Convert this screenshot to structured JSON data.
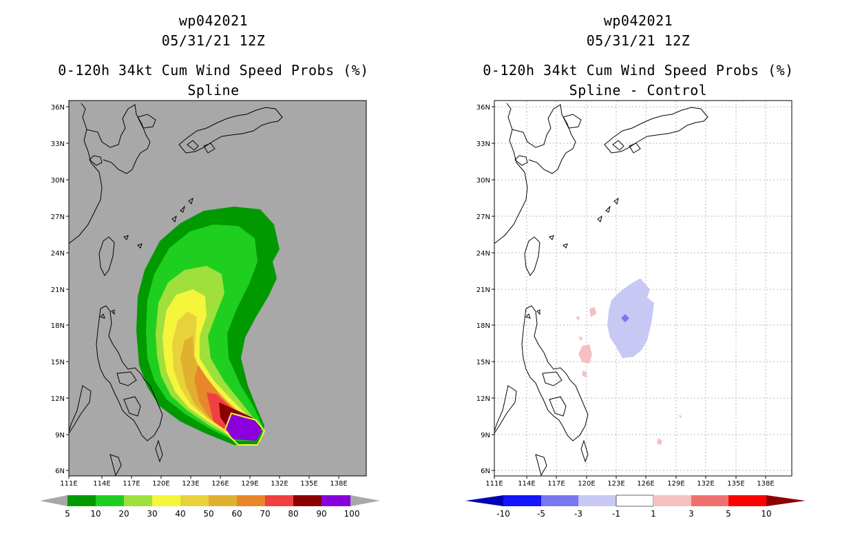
{
  "panels": [
    {
      "title_lines": [
        "wp042021",
        "05/31/21 12Z",
        "0-120h 34kt Cum Wind Speed Probs (%)",
        "Spline"
      ],
      "colorbar_labels": [
        "5",
        "10",
        "20",
        "30",
        "40",
        "50",
        "60",
        "70",
        "80",
        "90",
        "100"
      ],
      "colorbar_colors": [
        "#009a00",
        "#1fcf1f",
        "#9fe03c",
        "#f5f53c",
        "#e8d23c",
        "#e0b030",
        "#e8862a",
        "#f04040",
        "#8c0000",
        "#8a00dc"
      ],
      "map_background": "#a8a8a8"
    },
    {
      "title_lines": [
        "wp042021",
        "05/31/21 12Z",
        "0-120h 34kt Cum Wind Speed Probs (%)",
        "Spline - Control"
      ],
      "colorbar_labels": [
        "-10",
        "-5",
        "-3",
        "-1",
        "1",
        "3",
        "5",
        "10"
      ],
      "colorbar_colors": [
        "#0000b4",
        "#1414ff",
        "#7878f0",
        "#c8c8f5",
        "#ffffff",
        "#f5c0c0",
        "#f07070",
        "#ff0000",
        "#8c0000"
      ],
      "map_background": "#ffffff"
    }
  ],
  "lat_labels": [
    "36N",
    "33N",
    "30N",
    "27N",
    "24N",
    "21N",
    "18N",
    "15N",
    "12N",
    "9N",
    "6N"
  ],
  "lon_labels": [
    "111E",
    "114E",
    "117E",
    "120E",
    "123E",
    "126E",
    "129E",
    "132E",
    "135E",
    "138E"
  ]
}
